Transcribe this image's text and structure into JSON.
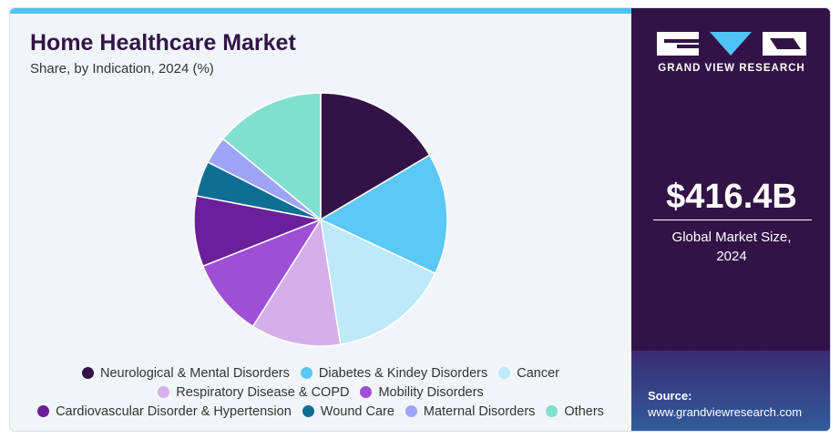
{
  "header": {
    "title": "Home Healthcare Market",
    "subtitle": "Share, by Indication, 2024 (%)"
  },
  "chart_data": {
    "type": "pie",
    "title": "Home Healthcare Market",
    "subtitle": "Share, by Indication, 2024 (%)",
    "series": [
      {
        "name": "Neurological & Mental Disorders",
        "value": 16.5,
        "color": "#331347"
      },
      {
        "name": "Diabetes & Kindey Disorders",
        "value": 15.5,
        "color": "#5bc8f5"
      },
      {
        "name": "Cancer",
        "value": 15.5,
        "color": "#bde9f9"
      },
      {
        "name": "Respiratory Disease & COPD",
        "value": 11.5,
        "color": "#d5aeea"
      },
      {
        "name": "Mobility Disorders",
        "value": 10.0,
        "color": "#9f4fd6"
      },
      {
        "name": "Cardiovascular Disorder & Hypertension",
        "value": 9.0,
        "color": "#6b1f9b"
      },
      {
        "name": "Wound Care",
        "value": 4.5,
        "color": "#0f6e93"
      },
      {
        "name": "Maternal Disorders",
        "value": 3.5,
        "color": "#9fa4fb"
      },
      {
        "name": "Others",
        "value": 14.0,
        "color": "#7fe0cd"
      }
    ],
    "legend_position": "bottom"
  },
  "sidebar": {
    "brand": "GRAND VIEW RESEARCH",
    "market_value": "$416.4B",
    "market_caption_line1": "Global Market Size,",
    "market_caption_line2": "2024",
    "source_label": "Source:",
    "source_url": "www.grandviewresearch.com"
  }
}
